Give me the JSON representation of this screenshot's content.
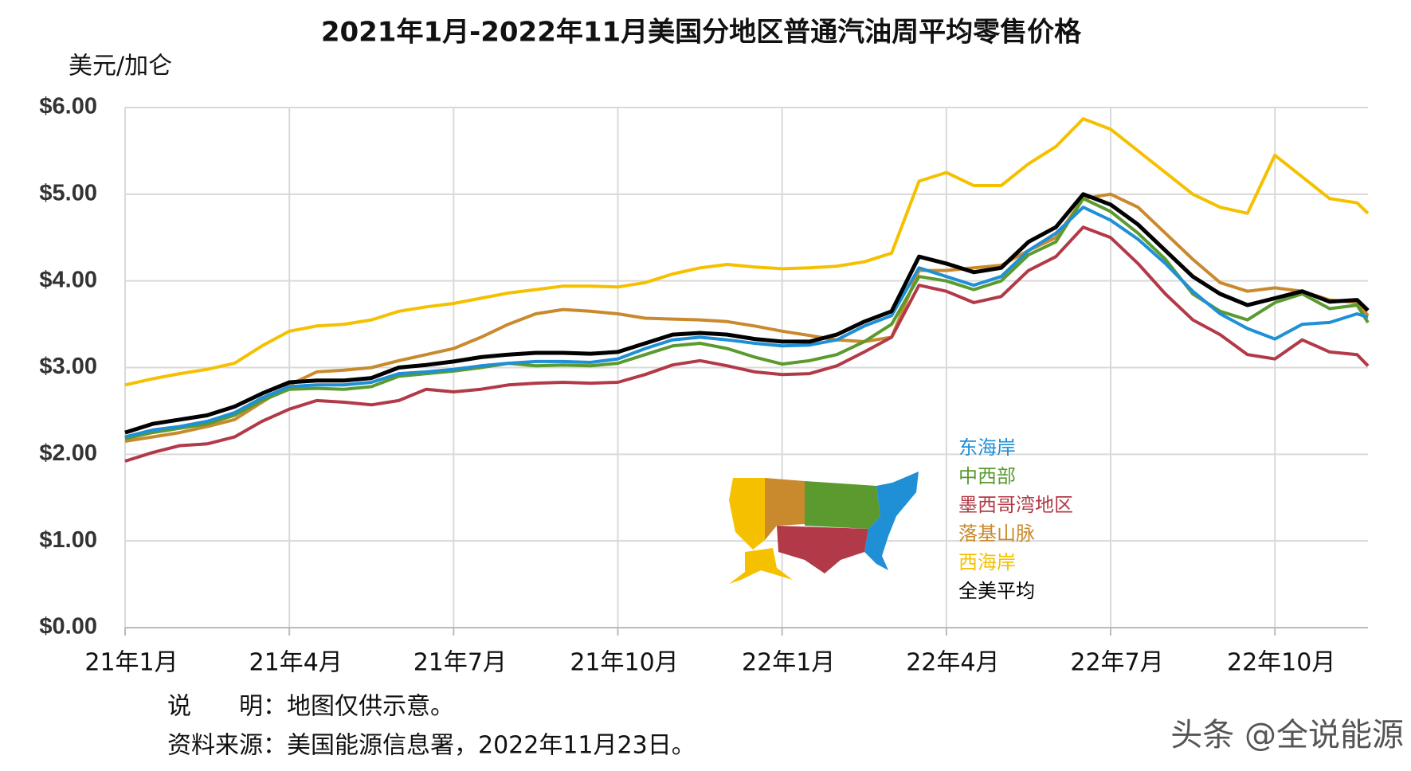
{
  "chart_data": {
    "type": "line",
    "title": "2021年1月-2022年11月美国分地区普通汽油周平均零售价格",
    "y_label": "美元/加仑",
    "notes": [
      "说　　明：地图仅供示意。",
      "资料来源：美国能源信息署，2022年11月23日。"
    ],
    "watermark": "头条 @全说能源",
    "xlim": [
      0,
      22.7
    ],
    "xticks": [
      {
        "value": 0,
        "label": "21年1月"
      },
      {
        "value": 3,
        "label": "21年4月"
      },
      {
        "value": 6,
        "label": "21年7月"
      },
      {
        "value": 9,
        "label": "21年10月"
      },
      {
        "value": 12,
        "label": "22年1月"
      },
      {
        "value": 15,
        "label": "22年4月"
      },
      {
        "value": 18,
        "label": "22年7月"
      },
      {
        "value": 21,
        "label": "22年10月"
      }
    ],
    "ylim": [
      0,
      6
    ],
    "yticks": [
      {
        "value": 0,
        "label": "$0.00"
      },
      {
        "value": 1,
        "label": "$1.00"
      },
      {
        "value": 2,
        "label": "$2.00"
      },
      {
        "value": 3,
        "label": "$3.00"
      },
      {
        "value": 4,
        "label": "$4.00"
      },
      {
        "value": 5,
        "label": "$5.00"
      },
      {
        "value": 6,
        "label": "$6.00"
      }
    ],
    "grid": true,
    "x": [
      0,
      0.5,
      1,
      1.5,
      2,
      2.5,
      3,
      3.5,
      4,
      4.5,
      5,
      5.5,
      6,
      6.5,
      7,
      7.5,
      8,
      8.5,
      9,
      9.5,
      10,
      10.5,
      11,
      11.5,
      12,
      12.5,
      13,
      13.5,
      14,
      14.5,
      15,
      15.5,
      16,
      16.5,
      17,
      17.5,
      18,
      18.5,
      19,
      19.5,
      20,
      20.5,
      21,
      21.5,
      22,
      22.5,
      22.7
    ],
    "series": [
      {
        "name": "东海岸",
        "color": "#1f8fd6",
        "values": [
          2.2,
          2.28,
          2.32,
          2.38,
          2.48,
          2.65,
          2.78,
          2.8,
          2.8,
          2.83,
          2.93,
          2.95,
          2.98,
          3.02,
          3.05,
          3.07,
          3.07,
          3.06,
          3.1,
          3.22,
          3.32,
          3.35,
          3.32,
          3.28,
          3.25,
          3.26,
          3.32,
          3.48,
          3.6,
          4.15,
          4.05,
          3.95,
          4.05,
          4.35,
          4.55,
          4.85,
          4.7,
          4.48,
          4.2,
          3.88,
          3.62,
          3.45,
          3.33,
          3.5,
          3.52,
          3.62,
          3.58
        ]
      },
      {
        "name": "中西部",
        "color": "#5a9a2f",
        "values": [
          2.18,
          2.25,
          2.3,
          2.35,
          2.45,
          2.62,
          2.75,
          2.76,
          2.75,
          2.78,
          2.9,
          2.93,
          2.96,
          3.0,
          3.05,
          3.02,
          3.03,
          3.02,
          3.05,
          3.15,
          3.25,
          3.28,
          3.22,
          3.12,
          3.04,
          3.08,
          3.15,
          3.3,
          3.5,
          4.05,
          4.0,
          3.9,
          4.0,
          4.3,
          4.45,
          4.95,
          4.8,
          4.55,
          4.25,
          3.85,
          3.65,
          3.55,
          3.75,
          3.85,
          3.68,
          3.72,
          3.52
        ]
      },
      {
        "name": "墨西哥湾地区",
        "color": "#b23a48",
        "values": [
          1.92,
          2.02,
          2.1,
          2.12,
          2.2,
          2.38,
          2.52,
          2.62,
          2.6,
          2.57,
          2.62,
          2.75,
          2.72,
          2.75,
          2.8,
          2.82,
          2.83,
          2.82,
          2.83,
          2.92,
          3.03,
          3.08,
          3.02,
          2.95,
          2.92,
          2.93,
          3.02,
          3.18,
          3.35,
          3.95,
          3.88,
          3.75,
          3.82,
          4.12,
          4.28,
          4.62,
          4.5,
          4.2,
          3.85,
          3.55,
          3.38,
          3.15,
          3.1,
          3.32,
          3.18,
          3.15,
          3.02
        ]
      },
      {
        "name": "落基山脉",
        "color": "#c98a2d",
        "values": [
          2.15,
          2.2,
          2.25,
          2.32,
          2.4,
          2.6,
          2.8,
          2.95,
          2.97,
          3.0,
          3.08,
          3.15,
          3.22,
          3.35,
          3.5,
          3.62,
          3.67,
          3.65,
          3.62,
          3.57,
          3.56,
          3.55,
          3.53,
          3.48,
          3.42,
          3.37,
          3.32,
          3.3,
          3.35,
          4.12,
          4.12,
          4.15,
          4.18,
          4.35,
          4.5,
          4.95,
          5.0,
          4.85,
          4.55,
          4.25,
          3.98,
          3.88,
          3.92,
          3.88,
          3.78,
          3.75,
          3.6
        ]
      },
      {
        "name": "西海岸",
        "color": "#f5c000",
        "values": [
          2.8,
          2.87,
          2.93,
          2.98,
          3.05,
          3.25,
          3.42,
          3.48,
          3.5,
          3.55,
          3.65,
          3.7,
          3.74,
          3.8,
          3.86,
          3.9,
          3.94,
          3.94,
          3.93,
          3.98,
          4.08,
          4.15,
          4.19,
          4.16,
          4.14,
          4.15,
          4.17,
          4.22,
          4.32,
          5.15,
          5.25,
          5.1,
          5.1,
          5.35,
          5.55,
          5.87,
          5.75,
          5.5,
          5.25,
          5.0,
          4.85,
          4.78,
          5.45,
          5.2,
          4.95,
          4.9,
          4.78
        ]
      },
      {
        "name": "全美平均",
        "color": "#000000",
        "values": [
          2.25,
          2.35,
          2.4,
          2.45,
          2.55,
          2.7,
          2.83,
          2.85,
          2.85,
          2.88,
          3.0,
          3.03,
          3.07,
          3.12,
          3.15,
          3.17,
          3.17,
          3.16,
          3.18,
          3.28,
          3.38,
          3.4,
          3.38,
          3.33,
          3.3,
          3.3,
          3.38,
          3.53,
          3.65,
          4.28,
          4.2,
          4.1,
          4.15,
          4.45,
          4.62,
          5.0,
          4.88,
          4.65,
          4.35,
          4.05,
          3.85,
          3.72,
          3.8,
          3.88,
          3.76,
          3.78,
          3.66
        ]
      }
    ]
  }
}
